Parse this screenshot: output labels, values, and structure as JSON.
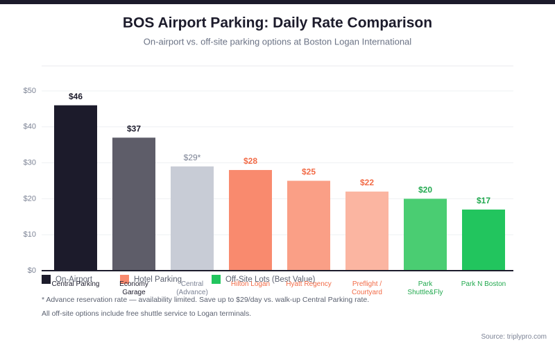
{
  "chart_data": {
    "type": "bar",
    "title": "BOS Airport Parking: Daily Rate Comparison",
    "subtitle": "On-airport vs. off-site parking options at Boston Logan International",
    "categories": [
      "Central Parking",
      "Economy Garage",
      "Central (Advance)",
      "Hilton Logan",
      "Hyatt Regency",
      "Preflight / Courtyard",
      "Park Shuttle&Fly",
      "Park N Boston"
    ],
    "values": [
      46,
      37,
      29,
      28,
      25,
      22,
      20,
      17
    ],
    "value_labels": [
      "$46",
      "$37",
      "$29*",
      "$28",
      "$25",
      "$22",
      "$20",
      "$17"
    ],
    "colors": [
      "#1c1b2b",
      "#5e5d69",
      "#c8ccd6",
      "#f98a6e",
      "#fa9f86",
      "#fbb5a1",
      "#4acd72",
      "#22c55e"
    ],
    "label_colors": [
      "#1c1b2b",
      "#1c1b2b",
      "#7b8294",
      "#f26b47",
      "#f26b47",
      "#f26b47",
      "#22a94f",
      "#22a94f"
    ],
    "ylim": [
      0,
      50
    ],
    "yticks": [
      {
        "value": 0,
        "label": "$0"
      },
      {
        "value": 10,
        "label": "$10"
      },
      {
        "value": 20,
        "label": "$20"
      },
      {
        "value": 30,
        "label": "$30"
      },
      {
        "value": 40,
        "label": "$40"
      },
      {
        "value": 50,
        "label": "$50"
      }
    ],
    "grid": true,
    "legend": [
      {
        "name": "On-Airport",
        "color": "#1c1b2b"
      },
      {
        "name": "Hotel Parking",
        "color": "#f98a6e"
      },
      {
        "name": "Off-Site Lots (Best Value)",
        "color": "#22c55e"
      }
    ],
    "notes": [
      "* Advance reservation rate — availability limited. Save up to $29/day vs. walk-up Central Parking rate.",
      "All off-site options include free shuttle service to Logan terminals."
    ],
    "source": "Source: triplypro.com"
  }
}
